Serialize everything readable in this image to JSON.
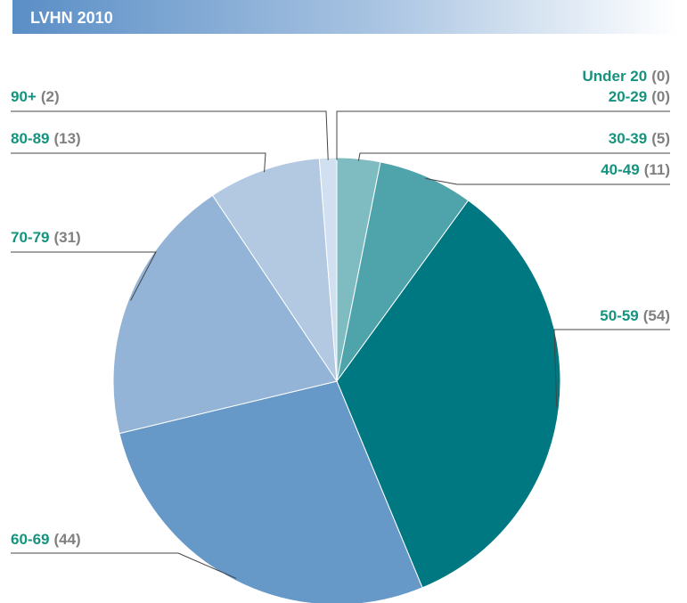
{
  "chart_data": {
    "type": "pie",
    "title": "LVHN 2010",
    "categories": [
      "Under 20",
      "20-29",
      "30-39",
      "40-49",
      "50-59",
      "60-69",
      "70-79",
      "80-89",
      "90+"
    ],
    "values": [
      0,
      0,
      5,
      11,
      54,
      44,
      31,
      13,
      2
    ],
    "value_labels": [
      "(0)",
      "(0)",
      "(5)",
      "(11)",
      "(54)",
      "(44)",
      "(31)",
      "(13)",
      "(2)"
    ],
    "colors": [
      "#a8d3d6",
      "#94c8cc",
      "#7fbcc1",
      "#4fa3aa",
      "#007882",
      "#6699c8",
      "#93b4d6",
      "#b3c9e2",
      "#d0e0f0"
    ]
  }
}
